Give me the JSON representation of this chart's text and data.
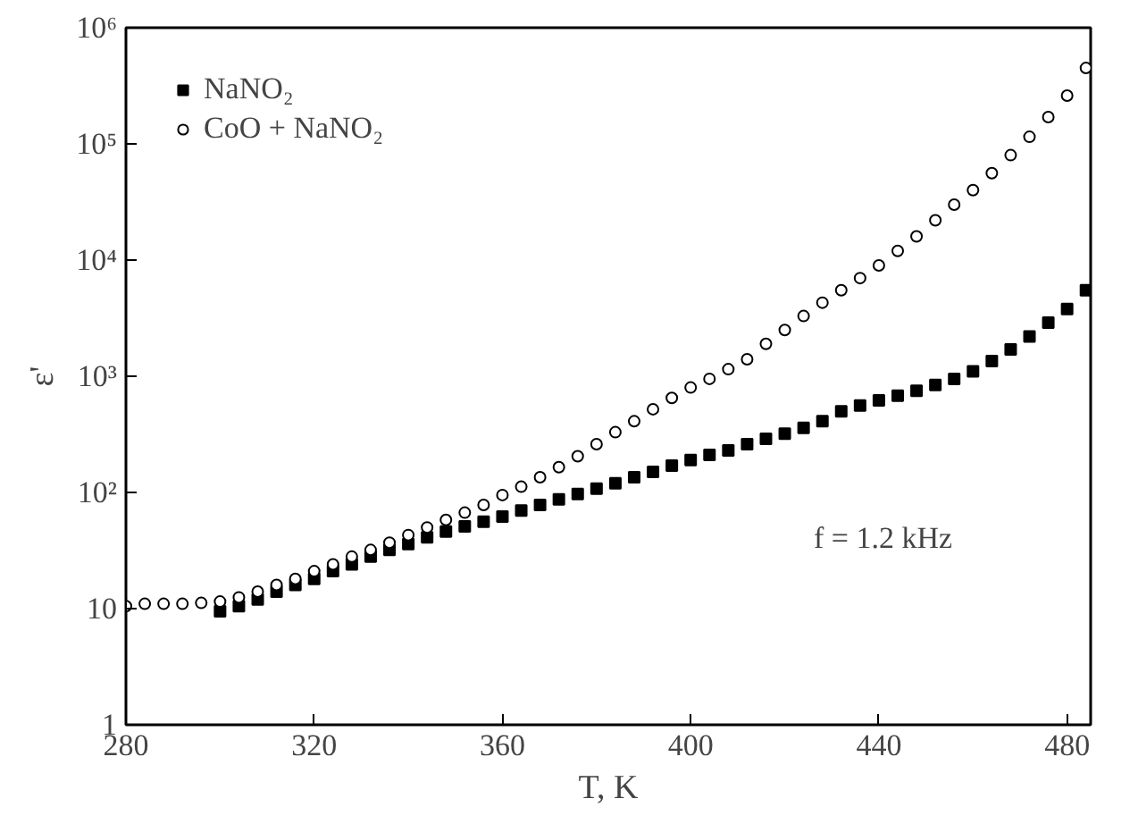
{
  "chart_data": {
    "type": "scatter",
    "xlabel": "T, K",
    "ylabel": "ε'",
    "log": "y",
    "grid": false,
    "legend": "top left",
    "xlim": [
      280,
      485
    ],
    "xticks": [
      280,
      320,
      360,
      400,
      440,
      480
    ],
    "ylim": [
      1,
      1000000
    ],
    "yticks": [
      1,
      10,
      {
        "value": 100,
        "label": "10²"
      },
      {
        "value": 1000,
        "label": "10³"
      },
      {
        "value": 10000,
        "label": "10⁴"
      },
      {
        "value": 100000,
        "label": "10⁵"
      },
      {
        "value": 1000000,
        "label": "10⁶"
      }
    ],
    "annotations": [
      "f = 1.2 kHz"
    ],
    "series": [
      {
        "name": "NaNO₂",
        "color": "#000000",
        "marker": "square",
        "x": [
          300,
          304,
          308,
          312,
          316,
          320,
          324,
          328,
          332,
          336,
          340,
          344,
          348,
          352,
          356,
          360,
          364,
          368,
          372,
          376,
          380,
          384,
          388,
          392,
          396,
          400,
          404,
          408,
          412,
          416,
          420,
          424,
          428,
          432,
          436,
          440,
          444,
          448,
          452,
          456,
          460,
          464,
          468,
          472,
          476,
          480,
          484
        ],
        "values": [
          9.5,
          10.5,
          12,
          14,
          16,
          18,
          21,
          24,
          28,
          32,
          36,
          41,
          46,
          51,
          56,
          62,
          70,
          78,
          87,
          97,
          108,
          120,
          135,
          150,
          170,
          190,
          210,
          230,
          260,
          290,
          320,
          360,
          410,
          500,
          560,
          620,
          680,
          750,
          840,
          950,
          1100,
          1350,
          1700,
          2200,
          2900,
          3800,
          5500
        ]
      },
      {
        "name": "CoO + NaNO₂",
        "color": "#000000",
        "marker": "circle",
        "x": [
          280,
          284,
          288,
          292,
          296,
          300,
          304,
          308,
          312,
          316,
          320,
          324,
          328,
          332,
          336,
          340,
          344,
          348,
          352,
          356,
          360,
          364,
          368,
          372,
          376,
          380,
          384,
          388,
          392,
          396,
          400,
          404,
          408,
          412,
          416,
          420,
          424,
          428,
          432,
          436,
          440,
          444,
          448,
          452,
          456,
          460,
          464,
          468,
          472,
          476,
          480,
          484
        ],
        "values": [
          10.5,
          11,
          11,
          11,
          11.2,
          11.5,
          12.5,
          14,
          16,
          18,
          21,
          24,
          28,
          32,
          37,
          43,
          50,
          58,
          67,
          78,
          95,
          112,
          135,
          165,
          205,
          260,
          330,
          410,
          520,
          650,
          800,
          950,
          1150,
          1400,
          1900,
          2500,
          3300,
          4300,
          5500,
          7000,
          9000,
          12000,
          16000,
          22000,
          30000,
          40000,
          56000,
          80000,
          115000,
          170000,
          260000,
          450000
        ]
      }
    ]
  }
}
